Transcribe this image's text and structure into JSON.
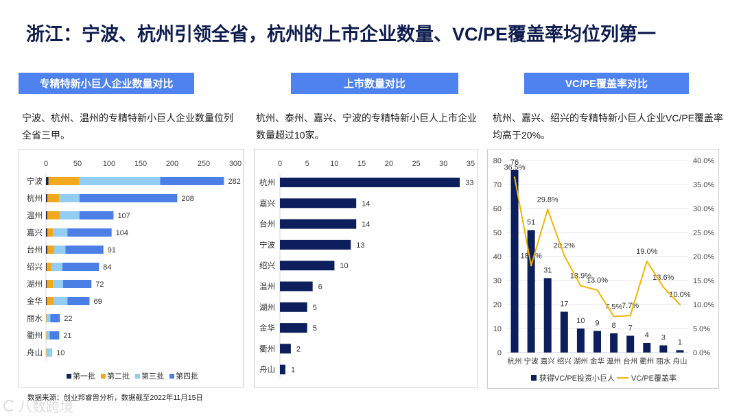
{
  "slide": {
    "title": "浙江：宁波、杭州引领全省，杭州的上市企业数量、VC/PE覆盖率均位列第一",
    "descriptions": [
      "宁波、杭州、温州的专精特新小巨人企业数量位列全省三甲。",
      "杭州、泰州、嘉兴、宁波的专精特新小巨人上市企业数量超过10家。",
      "杭州、嘉兴、绍兴的专精特新小巨人企业VC/PE覆盖率均高于20%。"
    ],
    "source": "数据来源：创业邦睿兽分析，数据截至2022年11月15日",
    "watermark": "八数跨境"
  },
  "colors": {
    "title": "#0e1c4e",
    "header_bg": "#4e82ee"
  },
  "chart_data": [
    {
      "title": "专精特新小巨人企业数量对比",
      "type": "bar",
      "orientation": "horizontal",
      "stacked": true,
      "categories": [
        "宁波",
        "杭州",
        "温州",
        "嘉兴",
        "台州",
        "绍兴",
        "湖州",
        "金华",
        "丽水",
        "衢州",
        "舟山"
      ],
      "series": [
        {
          "name": "第一批",
          "color": "#14245e",
          "values": [
            4,
            2,
            2,
            2,
            2,
            1,
            1,
            1,
            0,
            0,
            0
          ]
        },
        {
          "name": "第二批",
          "color": "#f2a81d",
          "values": [
            49,
            19,
            20,
            9,
            11,
            8,
            10,
            11,
            1,
            1,
            1
          ]
        },
        {
          "name": "第三批",
          "color": "#93cdf2",
          "values": [
            128,
            32,
            31,
            23,
            18,
            17,
            16,
            22,
            6,
            5,
            9
          ]
        },
        {
          "name": "第四批",
          "color": "#4b7fe5",
          "values": [
            101,
            155,
            54,
            70,
            60,
            58,
            45,
            35,
            15,
            15,
            0
          ]
        }
      ],
      "totals": [
        282,
        208,
        107,
        104,
        91,
        84,
        72,
        69,
        22,
        21,
        10
      ],
      "xlim": [
        0,
        300
      ],
      "xticks": [
        0,
        50,
        100,
        150,
        200,
        250,
        300
      ],
      "grid": false,
      "legend": "bottom"
    },
    {
      "title": "上市数量对比",
      "type": "bar",
      "orientation": "horizontal",
      "categories": [
        "杭州",
        "嘉兴",
        "台州",
        "宁波",
        "绍兴",
        "温州",
        "湖州",
        "金华",
        "衢州",
        "舟山"
      ],
      "values": [
        33,
        14,
        14,
        13,
        10,
        6,
        5,
        5,
        2,
        1
      ],
      "color": "#0c1f5c",
      "xlim": [
        0,
        35
      ],
      "xticks": [
        0,
        5,
        10,
        15,
        20,
        25,
        30,
        35
      ],
      "grid": false
    },
    {
      "title": "VC/PE覆盖率对比",
      "type": "bar+line",
      "categories": [
        "杭州",
        "宁波",
        "嘉兴",
        "绍兴",
        "湖州",
        "金华",
        "温州",
        "台州",
        "衢州",
        "丽水",
        "舟山"
      ],
      "series": [
        {
          "name": "获得VC/PE投资小巨人",
          "type": "bar",
          "axis": "left",
          "color": "#0c1f5c",
          "values": [
            76,
            51,
            31,
            17,
            10,
            9,
            8,
            7,
            4,
            3,
            1
          ]
        },
        {
          "name": "VC/PE覆盖率",
          "type": "line",
          "axis": "right",
          "color": "#f4b400",
          "values": [
            36.5,
            18.1,
            29.8,
            20.2,
            13.9,
            13.0,
            7.5,
            7.7,
            19.0,
            13.6,
            10.0
          ],
          "labels": [
            "36.5%",
            "18.1%",
            "29.8%",
            "20.2%",
            "13.9%",
            "13.0%",
            "7.5%",
            "7.7%",
            "19.0%",
            "13.6%",
            "10.0%"
          ]
        }
      ],
      "ylim_left": [
        0,
        80
      ],
      "yticks_left": [
        0,
        10,
        20,
        30,
        40,
        50,
        60,
        70,
        80
      ],
      "ylim_right": [
        0,
        40
      ],
      "yticks_right": [
        "0.0%",
        "5.0%",
        "10.0%",
        "15.0%",
        "20.0%",
        "25.0%",
        "30.0%",
        "35.0%",
        "40.0%"
      ],
      "grid": true,
      "legend": "bottom"
    }
  ]
}
